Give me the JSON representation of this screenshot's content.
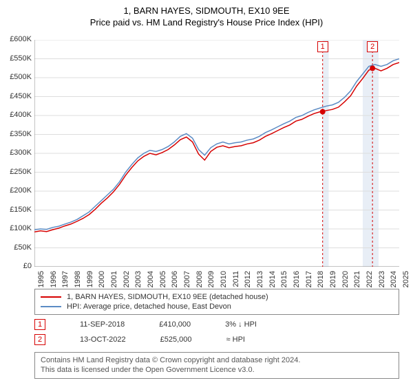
{
  "title": "1, BARN HAYES, SIDMOUTH, EX10 9EE",
  "subtitle": "Price paid vs. HM Land Registry's House Price Index (HPI)",
  "chart": {
    "type": "line",
    "background_color": "#ffffff",
    "grid_color": "#dddddd",
    "axis_color": "#888888",
    "x_range": [
      1995,
      2025
    ],
    "y_range": [
      0,
      600000
    ],
    "y_ticks": [
      0,
      50000,
      100000,
      150000,
      200000,
      250000,
      300000,
      350000,
      400000,
      450000,
      500000,
      550000,
      600000
    ],
    "y_tick_labels": [
      "£0",
      "£50K",
      "£100K",
      "£150K",
      "£200K",
      "£250K",
      "£300K",
      "£350K",
      "£400K",
      "£450K",
      "£500K",
      "£550K",
      "£600K"
    ],
    "x_ticks": [
      1995,
      1996,
      1997,
      1998,
      1999,
      2000,
      2001,
      2002,
      2003,
      2004,
      2005,
      2006,
      2007,
      2008,
      2009,
      2010,
      2011,
      2012,
      2013,
      2014,
      2015,
      2016,
      2017,
      2018,
      2019,
      2020,
      2021,
      2022,
      2023,
      2024,
      2025
    ],
    "shaded_regions": [
      {
        "x_start": 2018.7,
        "x_end": 2019.2,
        "color": "#e8eef6"
      },
      {
        "x_start": 2022.0,
        "x_end": 2023.3,
        "color": "#e8eef6"
      }
    ],
    "marker_lines": [
      {
        "x": 2018.7,
        "color": "#d60000",
        "dash": "3,3"
      },
      {
        "x": 2022.8,
        "color": "#d60000",
        "dash": "3,3"
      }
    ],
    "marker_badges": [
      {
        "x": 2018.7,
        "label": "1"
      },
      {
        "x": 2022.8,
        "label": "2"
      }
    ],
    "marker_points": [
      {
        "x": 2018.7,
        "y": 410000,
        "color": "#d60000"
      },
      {
        "x": 2022.8,
        "y": 525000,
        "color": "#d60000"
      }
    ],
    "series": [
      {
        "name": "hpi",
        "color": "#5b8bc4",
        "width": 1.5,
        "data": [
          [
            1995,
            98000
          ],
          [
            1995.5,
            100000
          ],
          [
            1996,
            99000
          ],
          [
            1996.5,
            104000
          ],
          [
            1997,
            107000
          ],
          [
            1997.5,
            113000
          ],
          [
            1998,
            118000
          ],
          [
            1998.5,
            125000
          ],
          [
            1999,
            135000
          ],
          [
            1999.5,
            145000
          ],
          [
            2000,
            160000
          ],
          [
            2000.5,
            175000
          ],
          [
            2001,
            190000
          ],
          [
            2001.5,
            205000
          ],
          [
            2002,
            225000
          ],
          [
            2002.5,
            250000
          ],
          [
            2003,
            270000
          ],
          [
            2003.5,
            288000
          ],
          [
            2004,
            300000
          ],
          [
            2004.5,
            308000
          ],
          [
            2005,
            305000
          ],
          [
            2005.5,
            310000
          ],
          [
            2006,
            318000
          ],
          [
            2006.5,
            330000
          ],
          [
            2007,
            345000
          ],
          [
            2007.5,
            352000
          ],
          [
            2008,
            340000
          ],
          [
            2008.5,
            310000
          ],
          [
            2009,
            295000
          ],
          [
            2009.5,
            315000
          ],
          [
            2010,
            325000
          ],
          [
            2010.5,
            330000
          ],
          [
            2011,
            325000
          ],
          [
            2011.5,
            328000
          ],
          [
            2012,
            330000
          ],
          [
            2012.5,
            335000
          ],
          [
            2013,
            338000
          ],
          [
            2013.5,
            345000
          ],
          [
            2014,
            355000
          ],
          [
            2014.5,
            362000
          ],
          [
            2015,
            370000
          ],
          [
            2015.5,
            378000
          ],
          [
            2016,
            385000
          ],
          [
            2016.5,
            395000
          ],
          [
            2017,
            400000
          ],
          [
            2017.5,
            408000
          ],
          [
            2018,
            415000
          ],
          [
            2018.5,
            420000
          ],
          [
            2019,
            425000
          ],
          [
            2019.5,
            428000
          ],
          [
            2020,
            435000
          ],
          [
            2020.5,
            448000
          ],
          [
            2021,
            465000
          ],
          [
            2021.5,
            490000
          ],
          [
            2022,
            510000
          ],
          [
            2022.5,
            530000
          ],
          [
            2023,
            535000
          ],
          [
            2023.5,
            530000
          ],
          [
            2024,
            535000
          ],
          [
            2024.5,
            545000
          ],
          [
            2025,
            550000
          ]
        ]
      },
      {
        "name": "property",
        "color": "#d60000",
        "width": 1.5,
        "data": [
          [
            1995,
            92000
          ],
          [
            1995.5,
            95000
          ],
          [
            1996,
            93000
          ],
          [
            1996.5,
            98000
          ],
          [
            1997,
            102000
          ],
          [
            1997.5,
            108000
          ],
          [
            1998,
            113000
          ],
          [
            1998.5,
            120000
          ],
          [
            1999,
            128000
          ],
          [
            1999.5,
            138000
          ],
          [
            2000,
            152000
          ],
          [
            2000.5,
            168000
          ],
          [
            2001,
            182000
          ],
          [
            2001.5,
            198000
          ],
          [
            2002,
            218000
          ],
          [
            2002.5,
            242000
          ],
          [
            2003,
            262000
          ],
          [
            2003.5,
            280000
          ],
          [
            2004,
            292000
          ],
          [
            2004.5,
            300000
          ],
          [
            2005,
            296000
          ],
          [
            2005.5,
            302000
          ],
          [
            2006,
            310000
          ],
          [
            2006.5,
            322000
          ],
          [
            2007,
            336000
          ],
          [
            2007.5,
            343000
          ],
          [
            2008,
            330000
          ],
          [
            2008.5,
            298000
          ],
          [
            2009,
            282000
          ],
          [
            2009.5,
            305000
          ],
          [
            2010,
            316000
          ],
          [
            2010.5,
            320000
          ],
          [
            2011,
            315000
          ],
          [
            2011.5,
            318000
          ],
          [
            2012,
            320000
          ],
          [
            2012.5,
            325000
          ],
          [
            2013,
            328000
          ],
          [
            2013.5,
            335000
          ],
          [
            2014,
            345000
          ],
          [
            2014.5,
            352000
          ],
          [
            2015,
            360000
          ],
          [
            2015.5,
            368000
          ],
          [
            2016,
            375000
          ],
          [
            2016.5,
            385000
          ],
          [
            2017,
            390000
          ],
          [
            2017.5,
            398000
          ],
          [
            2018,
            405000
          ],
          [
            2018.5,
            410000
          ],
          [
            2019,
            413000
          ],
          [
            2019.5,
            416000
          ],
          [
            2020,
            422000
          ],
          [
            2020.5,
            436000
          ],
          [
            2021,
            452000
          ],
          [
            2021.5,
            478000
          ],
          [
            2022,
            498000
          ],
          [
            2022.5,
            520000
          ],
          [
            2023,
            525000
          ],
          [
            2023.5,
            518000
          ],
          [
            2024,
            525000
          ],
          [
            2024.5,
            535000
          ],
          [
            2025,
            540000
          ]
        ]
      }
    ]
  },
  "legend": {
    "line1_color": "#d60000",
    "line1_label": "1, BARN HAYES, SIDMOUTH, EX10 9EE (detached house)",
    "line2_color": "#5b8bc4",
    "line2_label": "HPI: Average price, detached house, East Devon"
  },
  "sale_rows": [
    {
      "badge": "1",
      "date": "11-SEP-2018",
      "price": "£410,000",
      "hpi": "3% ↓ HPI"
    },
    {
      "badge": "2",
      "date": "13-OCT-2022",
      "price": "£525,000",
      "hpi": "≈ HPI"
    }
  ],
  "footer": {
    "line1": "Contains HM Land Registry data © Crown copyright and database right 2024.",
    "line2": "This data is licensed under the Open Government Licence v3.0."
  }
}
